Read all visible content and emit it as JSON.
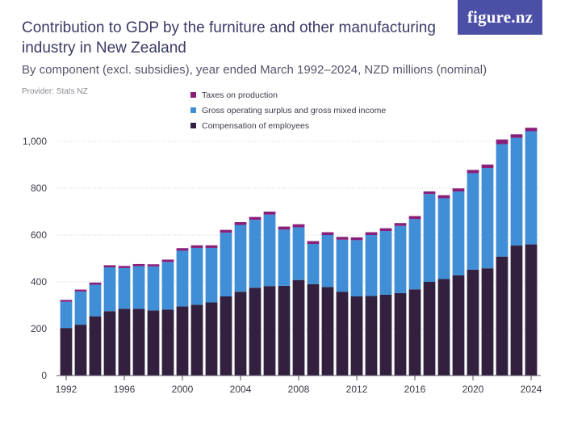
{
  "title": "Contribution to GDP by the furniture and other manufacturing industry in New Zealand",
  "subtitle": "By component (excl. subsidies), year ended March 1992–2024, NZD millions (nominal)",
  "provider": "Provider: Stats NZ",
  "logo": "figure.nz",
  "colors": {
    "compensation": "#33203f",
    "surplus": "#3f8ed6",
    "taxes": "#8a1f7a",
    "grid": "#cfcfd6",
    "axis": "#555566"
  },
  "chart_data": {
    "type": "bar",
    "stacked": true,
    "categories": [
      "1992",
      "1993",
      "1994",
      "1995",
      "1996",
      "1997",
      "1998",
      "1999",
      "2000",
      "2001",
      "2002",
      "2003",
      "2004",
      "2005",
      "2006",
      "2007",
      "2008",
      "2009",
      "2010",
      "2011",
      "2012",
      "2013",
      "2014",
      "2015",
      "2016",
      "2017",
      "2018",
      "2019",
      "2020",
      "2021",
      "2022",
      "2023",
      "2024"
    ],
    "series": [
      {
        "name": "Compensation of employees",
        "color": "#33203f",
        "values": [
          203,
          217,
          253,
          275,
          285,
          285,
          278,
          282,
          295,
          302,
          312,
          338,
          358,
          375,
          382,
          383,
          408,
          390,
          378,
          358,
          338,
          340,
          345,
          352,
          368,
          400,
          412,
          428,
          452,
          458,
          508,
          555,
          560
        ]
      },
      {
        "name": "Gross operating surplus and gross mixed income",
        "color": "#3f8ed6",
        "values": [
          112,
          142,
          135,
          187,
          174,
          182,
          188,
          203,
          238,
          243,
          233,
          272,
          285,
          290,
          305,
          240,
          225,
          172,
          222,
          222,
          240,
          260,
          272,
          287,
          300,
          375,
          345,
          358,
          412,
          428,
          480,
          460,
          483
        ]
      },
      {
        "name": "Taxes on production",
        "color": "#8a1f7a",
        "values": [
          8,
          8,
          9,
          9,
          9,
          9,
          9,
          10,
          11,
          11,
          11,
          12,
          12,
          12,
          13,
          13,
          13,
          12,
          12,
          12,
          12,
          12,
          12,
          12,
          13,
          11,
          13,
          13,
          14,
          15,
          20,
          15,
          15
        ]
      }
    ],
    "xticks": [
      "1992",
      "1996",
      "2000",
      "2004",
      "2008",
      "2012",
      "2016",
      "2020",
      "2024"
    ],
    "yticks": [
      0,
      200,
      400,
      600,
      800,
      1000
    ],
    "ytick_labels": [
      "0",
      "200",
      "400",
      "600",
      "800",
      "1,000"
    ],
    "ylim": [
      0,
      1100
    ],
    "legend_position": "top",
    "legend": [
      "Taxes on production",
      "Gross operating surplus and gross mixed income",
      "Compensation of employees"
    ],
    "grid": true
  }
}
